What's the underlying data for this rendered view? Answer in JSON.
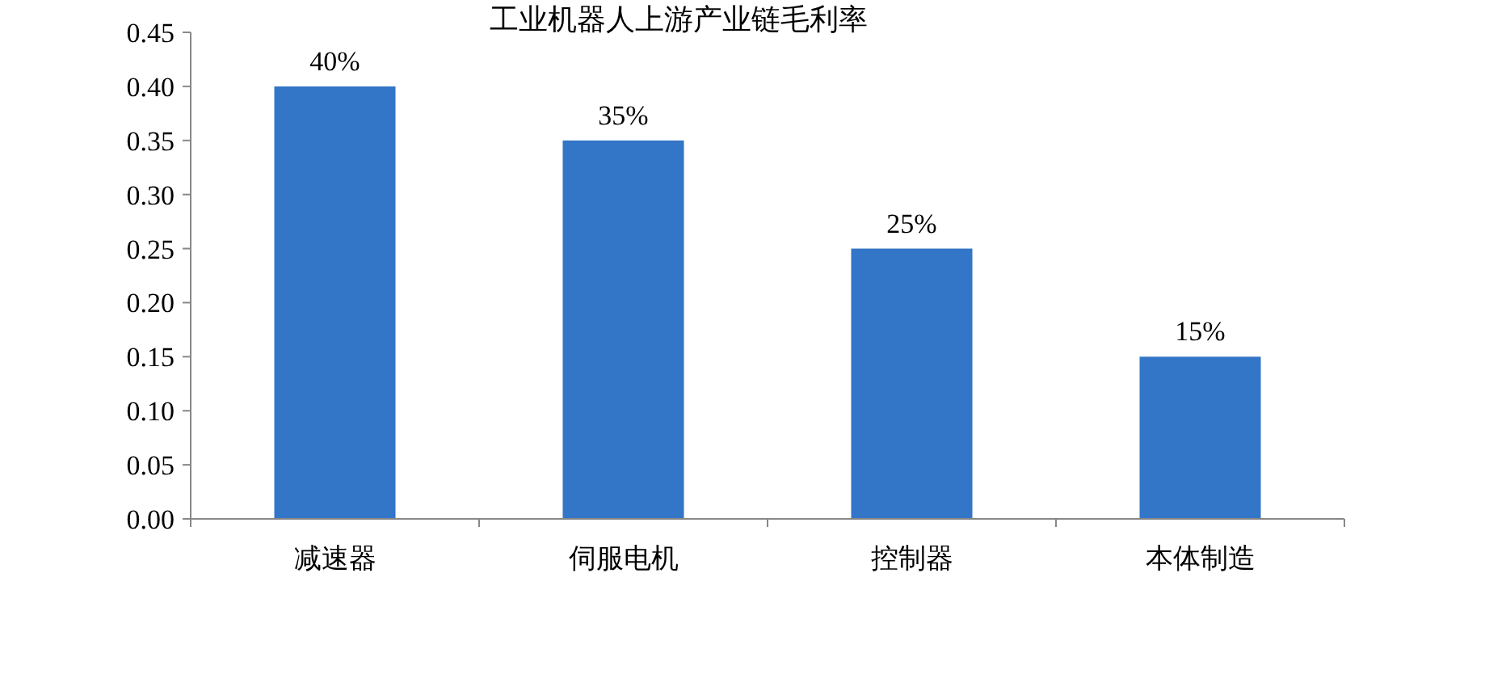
{
  "chart_data": {
    "type": "bar",
    "title": "工业机器人上游产业链毛利率",
    "categories": [
      "减速器",
      "伺服电机",
      "控制器",
      "本体制造"
    ],
    "values": [
      0.4,
      0.35,
      0.25,
      0.15
    ],
    "value_labels": [
      "40%",
      "35%",
      "25%",
      "15%"
    ],
    "color": "#3375c6",
    "ylim": [
      0,
      0.45
    ],
    "yticks": [
      {
        "value": 0,
        "label": "0.00"
      },
      {
        "value": 0.05,
        "label": "0.05"
      },
      {
        "value": 0.1,
        "label": "0.10"
      },
      {
        "value": 0.15,
        "label": "0.15"
      },
      {
        "value": 0.2,
        "label": "0.20"
      },
      {
        "value": 0.25,
        "label": "0.25"
      },
      {
        "value": 0.3,
        "label": "0.30"
      },
      {
        "value": 0.35,
        "label": "0.35"
      },
      {
        "value": 0.4,
        "label": "0.40"
      },
      {
        "value": 0.45,
        "label": "0.45"
      }
    ],
    "grid": false
  }
}
